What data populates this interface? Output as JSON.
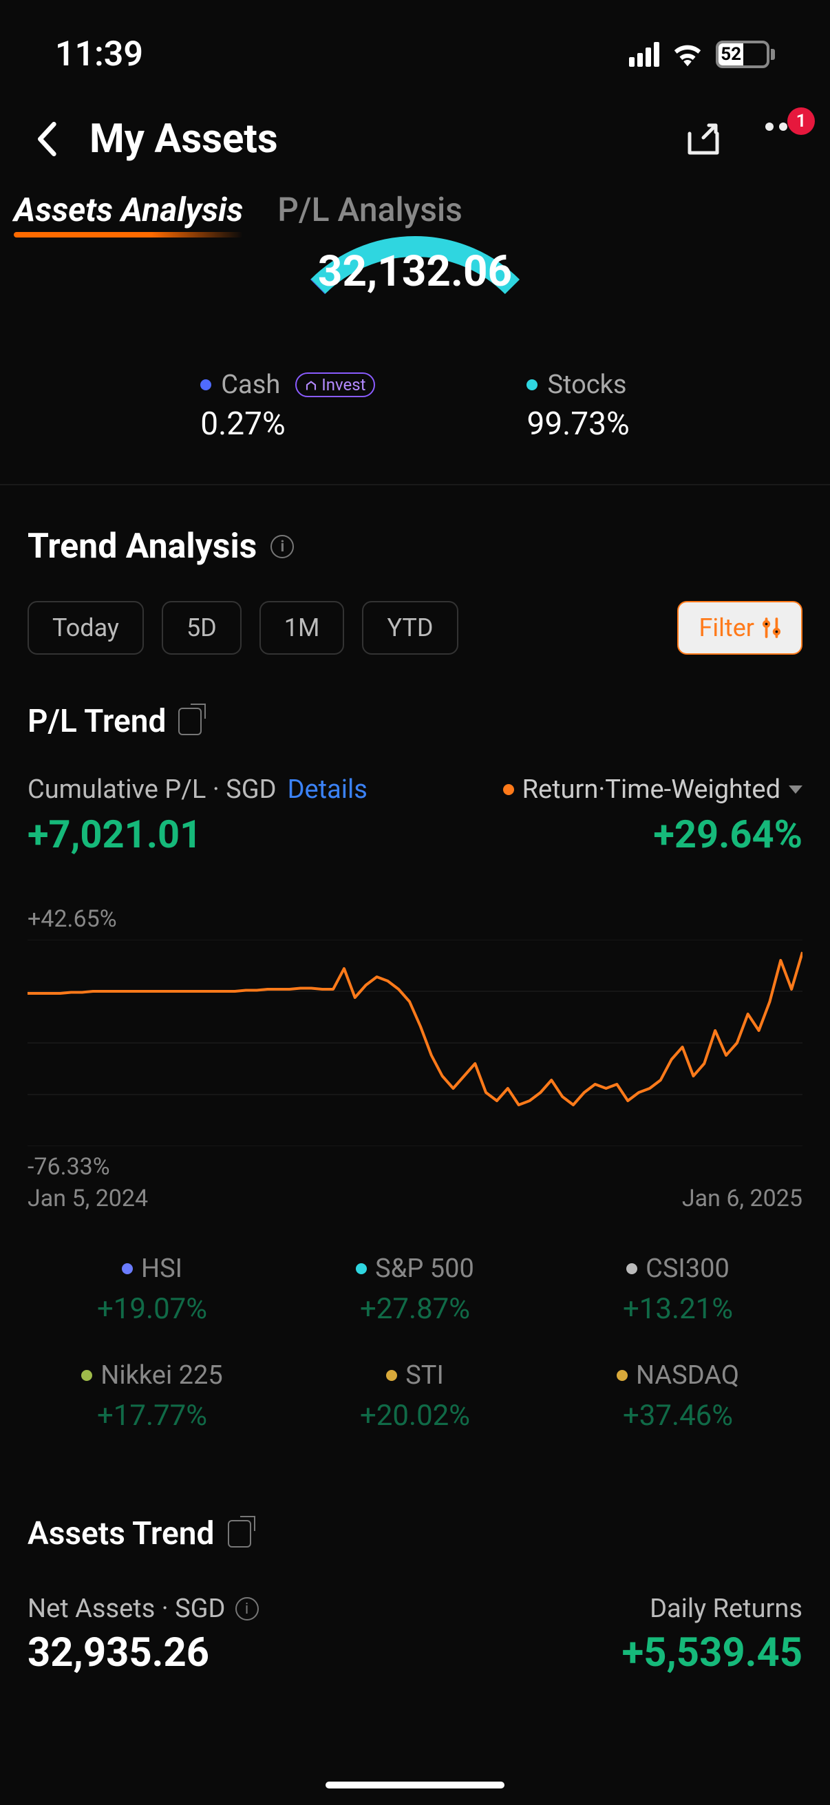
{
  "status": {
    "time": "11:39",
    "battery_pct": 52,
    "battery_text": "52"
  },
  "nav": {
    "title": "My Assets",
    "badge": "1"
  },
  "tabs": {
    "active": "Assets Analysis",
    "inactive": "P/L Analysis"
  },
  "donut": {
    "total": "32,132.06",
    "cash": {
      "label": "Cash",
      "value": "0.27%",
      "pct": 0.27,
      "color": "#4f6bff",
      "pill": "Invest"
    },
    "stocks": {
      "label": "Stocks",
      "value": "99.73%",
      "pct": 99.73,
      "color": "#2fd6e0"
    },
    "stroke_width": 30,
    "radius": 200
  },
  "trend": {
    "title": "Trend Analysis",
    "periods": [
      "Today",
      "5D",
      "1M",
      "YTD"
    ],
    "filter": "Filter",
    "pl_title": "P/L Trend",
    "cum_label": "Cumulative P/L · SGD",
    "details": "Details",
    "cum_value": "+7,021.01",
    "cum_color": "#16b97a",
    "return_label": "Return·Time-Weighted",
    "return_dot_color": "#ff7a1a",
    "return_value": "+29.64%",
    "return_color": "#16b97a"
  },
  "chart": {
    "y_top": "+42.65%",
    "y_bottom": "-76.33%",
    "x_start": "Jan 5, 2024",
    "x_end": "Jan 6, 2025",
    "line_color": "#ff7a1a",
    "grid_color": "#222",
    "points_y": [
      0.26,
      0.26,
      0.26,
      0.26,
      0.255,
      0.255,
      0.25,
      0.25,
      0.25,
      0.25,
      0.25,
      0.25,
      0.25,
      0.25,
      0.25,
      0.25,
      0.25,
      0.25,
      0.25,
      0.25,
      0.245,
      0.245,
      0.24,
      0.24,
      0.24,
      0.235,
      0.235,
      0.24,
      0.24,
      0.14,
      0.28,
      0.22,
      0.18,
      0.2,
      0.24,
      0.3,
      0.42,
      0.56,
      0.66,
      0.72,
      0.66,
      0.6,
      0.74,
      0.78,
      0.72,
      0.8,
      0.78,
      0.74,
      0.68,
      0.76,
      0.8,
      0.74,
      0.7,
      0.72,
      0.7,
      0.78,
      0.74,
      0.72,
      0.68,
      0.58,
      0.52,
      0.66,
      0.6,
      0.44,
      0.56,
      0.5,
      0.36,
      0.44,
      0.3,
      0.1,
      0.24,
      0.06
    ]
  },
  "indices": [
    {
      "name": "HSI",
      "value": "+19.07%",
      "dot": "#6b7cff",
      "color": "#16b97a"
    },
    {
      "name": "S&P 500",
      "value": "+27.87%",
      "dot": "#2fd6e0",
      "color": "#16b97a"
    },
    {
      "name": "CSI300",
      "value": "+13.21%",
      "dot": "#bbb",
      "color": "#16b97a"
    },
    {
      "name": "Nikkei 225",
      "value": "+17.77%",
      "dot": "#9fbb4a",
      "color": "#16b97a"
    },
    {
      "name": "STI",
      "value": "+20.02%",
      "dot": "#d9a93a",
      "color": "#16b97a"
    },
    {
      "name": "NASDAQ",
      "value": "+37.46%",
      "dot": "#d9a93a",
      "color": "#16b97a"
    }
  ],
  "assets_trend": {
    "title": "Assets Trend",
    "net_label": "Net Assets · SGD",
    "net_value": "32,935.26",
    "daily_label": "Daily Returns",
    "daily_value": "+5,539.45",
    "daily_color": "#16b97a"
  }
}
